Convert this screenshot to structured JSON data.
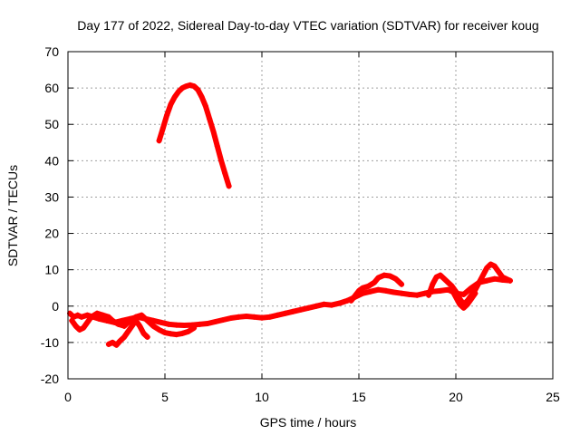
{
  "chart_data": {
    "type": "scatter",
    "title": "Day 177 of 2022, Sidereal Day-to-day VTEC variation (SDTVAR) for receiver koug",
    "xlabel": "GPS time / hours",
    "ylabel": "SDTVAR / TECUs",
    "xlim": [
      0,
      25
    ],
    "ylim": [
      -20,
      70
    ],
    "xticks": [
      0,
      5,
      10,
      15,
      20,
      25
    ],
    "yticks": [
      -20,
      -10,
      0,
      10,
      20,
      30,
      40,
      50,
      60,
      70
    ],
    "grid": true,
    "series": [
      {
        "name": "SDTVAR koug",
        "color": "#ff0000",
        "segments": [
          {
            "x": [
              4.7,
              4.9,
              5.1,
              5.3,
              5.5,
              5.7,
              5.9,
              6.1,
              6.3,
              6.5,
              6.7,
              6.9,
              7.1,
              7.3,
              7.5,
              7.7,
              7.9,
              8.1,
              8.3
            ],
            "y": [
              45.5,
              49,
              52.5,
              55.5,
              57.5,
              59,
              60,
              60.5,
              60.8,
              60.5,
              59.5,
              57.5,
              55,
              51.5,
              48,
              44,
              40,
              36.5,
              33
            ]
          },
          {
            "x": [
              0.1,
              0.3,
              0.5,
              0.7,
              1.0,
              1.3,
              1.6,
              2.0,
              2.4,
              2.8,
              3.2,
              3.6,
              4.0,
              4.4,
              4.8,
              5.2,
              5.6,
              6.0,
              6.4,
              6.8,
              7.2,
              7.6,
              8.0,
              8.4,
              8.8,
              9.2,
              9.6,
              10.0,
              10.4,
              10.8,
              11.2,
              11.6,
              12.0,
              12.4,
              12.8,
              13.2,
              13.6,
              14.0,
              14.4,
              14.8,
              15.2,
              15.6,
              16.0,
              16.4,
              16.8,
              17.2,
              17.6,
              18.0,
              18.4,
              18.8,
              19.2,
              19.6,
              20.0,
              20.4,
              20.8,
              21.2,
              21.6,
              22.0,
              22.4,
              22.8
            ],
            "y": [
              -2,
              -3,
              -2.5,
              -3,
              -2.5,
              -3,
              -3.5,
              -4,
              -4.5,
              -4,
              -3.5,
              -3,
              -3.5,
              -4,
              -4.5,
              -5,
              -5.2,
              -5.3,
              -5.2,
              -5,
              -4.8,
              -4.3,
              -3.8,
              -3.3,
              -3,
              -2.8,
              -3,
              -3.2,
              -3,
              -2.5,
              -2,
              -1.5,
              -1,
              -0.5,
              0,
              0.5,
              0.3,
              0.8,
              1.5,
              2.5,
              3.5,
              4,
              4.5,
              4.2,
              3.8,
              3.5,
              3.2,
              3,
              3.5,
              4,
              4.2,
              4.5,
              3.5,
              3.2,
              5,
              6.5,
              7,
              7.5,
              7.2,
              7
            ]
          },
          {
            "x": [
              0.2,
              0.4,
              0.6,
              0.8,
              1.0,
              1.2,
              1.5,
              1.8,
              2.1,
              2.3,
              2.6,
              2.9,
              3.2,
              3.5,
              3.8,
              4.1,
              4.4,
              4.7,
              5.0,
              5.3,
              5.6,
              5.9,
              6.2,
              6.5
            ],
            "y": [
              -4,
              -5.5,
              -6.5,
              -6,
              -4.5,
              -3,
              -2,
              -2.5,
              -3,
              -4,
              -5,
              -5.5,
              -4,
              -3,
              -2.5,
              -4,
              -5.5,
              -6.5,
              -7.3,
              -7.6,
              -7.8,
              -7.5,
              -7,
              -6
            ]
          },
          {
            "x": [
              2.1,
              2.3,
              2.5,
              2.7,
              2.9,
              3.1,
              3.3,
              3.5,
              3.7,
              3.9,
              4.1
            ],
            "y": [
              -10.5,
              -10,
              -10.7,
              -9.5,
              -8.5,
              -7,
              -5.5,
              -4,
              -5.5,
              -7.5,
              -8.5
            ]
          },
          {
            "x": [
              14.6,
              14.8,
              15.0,
              15.2,
              15.5,
              15.8,
              16.0,
              16.3,
              16.6,
              16.9,
              17.2
            ],
            "y": [
              1.5,
              2.8,
              4.2,
              5,
              5.5,
              6.5,
              7.8,
              8.5,
              8.3,
              7.5,
              6
            ]
          },
          {
            "x": [
              18.6,
              18.8,
              19.0,
              19.2,
              19.4,
              19.6,
              19.8,
              20.0,
              20.2,
              20.4,
              20.6,
              20.8,
              21.0,
              21.2,
              21.4,
              21.6,
              21.8,
              22.0,
              22.2,
              22.4,
              22.6,
              22.8
            ],
            "y": [
              3,
              6,
              8,
              8.5,
              7.5,
              6.5,
              5.5,
              4,
              2,
              0.5,
              1.5,
              3,
              4.5,
              6.5,
              8.5,
              10.5,
              11.5,
              11,
              9.5,
              8,
              7.5,
              7
            ]
          },
          {
            "x": [
              19.8,
              20.0,
              20.2,
              20.4,
              20.6,
              20.8,
              21.0
            ],
            "y": [
              4.5,
              2.5,
              0.5,
              -0.5,
              0.5,
              2,
              3.5
            ]
          }
        ]
      }
    ]
  }
}
